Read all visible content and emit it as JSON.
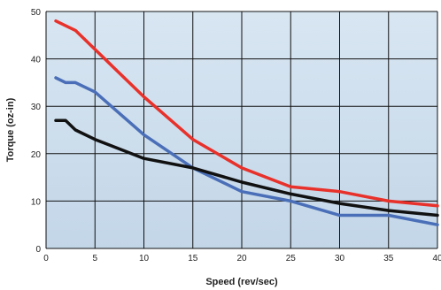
{
  "chart_data": {
    "type": "line",
    "xlabel": "Speed (rev/sec)",
    "ylabel": "Torque (oz-in)",
    "xlim": [
      0,
      40
    ],
    "ylim": [
      0,
      50
    ],
    "x_ticks": [
      0,
      5,
      10,
      15,
      20,
      25,
      30,
      35,
      40
    ],
    "y_ticks": [
      0,
      10,
      20,
      30,
      40,
      50
    ],
    "grid": true,
    "background": "light-blue gradient",
    "series": [
      {
        "color": "#e8312a",
        "points": [
          [
            1,
            48
          ],
          [
            3,
            46
          ],
          [
            5,
            42
          ],
          [
            10,
            32
          ],
          [
            15,
            23
          ],
          [
            20,
            17
          ],
          [
            25,
            13
          ],
          [
            30,
            12
          ],
          [
            35,
            10
          ],
          [
            40,
            9
          ]
        ]
      },
      {
        "color": "#4a6fb8",
        "points": [
          [
            1,
            36
          ],
          [
            2,
            35
          ],
          [
            3,
            35
          ],
          [
            5,
            33
          ],
          [
            10,
            24
          ],
          [
            15,
            17
          ],
          [
            20,
            12
          ],
          [
            25,
            10
          ],
          [
            30,
            7
          ],
          [
            35,
            7
          ],
          [
            40,
            5
          ]
        ]
      },
      {
        "color": "#111111",
        "points": [
          [
            1,
            27
          ],
          [
            2,
            27
          ],
          [
            3,
            25
          ],
          [
            5,
            23
          ],
          [
            10,
            19
          ],
          [
            15,
            17
          ],
          [
            20,
            14
          ],
          [
            25,
            11.5
          ],
          [
            30,
            9.5
          ],
          [
            35,
            8
          ],
          [
            40,
            7
          ]
        ]
      }
    ]
  }
}
